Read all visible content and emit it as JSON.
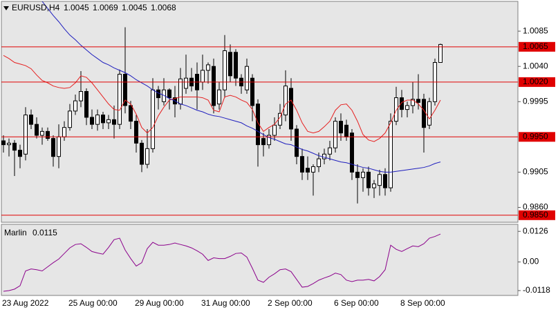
{
  "chart_data": [
    {
      "type": "candlestick",
      "title": "EURUSD,H4",
      "categories": [
        "23 Aug 2022",
        null,
        null,
        null,
        null,
        null,
        null,
        null,
        null,
        null,
        null,
        null,
        "25 Aug 00:00",
        null,
        null,
        null,
        null,
        null,
        null,
        null,
        null,
        null,
        null,
        null,
        "29 Aug 00:00",
        null,
        null,
        null,
        null,
        null,
        null,
        null,
        null,
        null,
        null,
        null,
        "31 Aug 00:00",
        null,
        null,
        null,
        null,
        null,
        null,
        null,
        null,
        null,
        null,
        null,
        "2 Sep 00:00",
        null,
        null,
        null,
        null,
        null,
        null,
        null,
        null,
        null,
        null,
        null,
        "6 Sep 00:00",
        null,
        null,
        null,
        null,
        null,
        null,
        null,
        null,
        null,
        null,
        null,
        "8 Sep 00:00",
        null,
        null,
        null,
        null,
        null,
        null,
        null
      ],
      "open": [
        0.9945,
        0.994,
        0.9942,
        0.9933,
        0.9928,
        0.9978,
        0.9966,
        0.9952,
        0.9957,
        0.9948,
        0.9925,
        0.995,
        0.9962,
        0.9983,
        0.9996,
        1.0008,
        0.9975,
        0.9966,
        0.9978,
        0.9968,
        0.9972,
        0.9966,
        1.003,
        0.999,
        0.997,
        0.9942,
        0.9915,
        0.9935,
        1.001,
        0.9995,
        1.001,
        1.0,
        0.9992,
        1.0012,
        1.0025,
        1.003,
        1.002,
        1.0035,
        1.004,
        0.9992,
        1.001,
        1.0058,
        1.0058,
        1.0025,
        1.001,
        1.0025,
        0.9992,
        0.9948,
        0.994,
        0.9952,
        0.9965,
        0.9978,
        1.0012,
        0.996,
        0.9925,
        0.991,
        0.9905,
        0.9912,
        0.9922,
        0.9928,
        0.9936,
        0.997,
        0.9965,
        0.9955,
        0.9905,
        0.9898,
        0.9905,
        0.9885,
        0.9888,
        0.9902,
        0.9885,
        0.997,
        1.0,
        0.9985,
        0.999,
        0.9998,
        0.9998,
        0.9965,
        0.9995,
        1.0045
      ],
      "high": [
        0.9952,
        0.9948,
        0.9946,
        0.994,
        0.9988,
        0.9985,
        0.9975,
        0.9962,
        0.9962,
        0.9952,
        0.9966,
        0.997,
        0.9992,
        1.0004,
        1.0034,
        1.0012,
        0.9985,
        0.9985,
        0.9982,
        0.9978,
        0.999,
        1.0036,
        1.009,
        0.9996,
        0.9978,
        0.9946,
        0.996,
        1.0025,
        1.0015,
        1.0025,
        1.0012,
        1.0015,
        1.0038,
        1.0055,
        1.0038,
        1.0045,
        1.0055,
        1.0045,
        1.005,
        1.002,
        1.008,
        1.0068,
        1.0062,
        1.003,
        1.005,
        1.003,
        0.9998,
        0.9955,
        0.996,
        0.9975,
        0.9992,
        1.0035,
        1.0025,
        0.9965,
        0.9935,
        0.9925,
        0.9915,
        0.993,
        0.9935,
        0.9945,
        0.9975,
        0.998,
        0.9972,
        0.996,
        0.9915,
        0.991,
        0.9912,
        0.9895,
        0.9908,
        0.991,
        0.998,
        1.0014,
        1.001,
        0.9995,
        1.002,
        1.003,
        1.0005,
        1.0,
        1.005,
        1.0069
      ],
      "low": [
        0.993,
        0.9925,
        0.99,
        0.991,
        0.992,
        0.996,
        0.9948,
        0.994,
        0.9945,
        0.9912,
        0.991,
        0.9945,
        0.9958,
        0.9978,
        0.9988,
        0.9965,
        0.996,
        0.9958,
        0.996,
        0.996,
        0.9948,
        0.996,
        0.998,
        0.996,
        0.993,
        0.9905,
        0.991,
        0.993,
        0.9985,
        0.999,
        0.9985,
        0.9975,
        0.9985,
        1.0005,
        1.0008,
        0.9985,
        1.001,
        1.0018,
        0.998,
        0.9985,
        1.0,
        1.002,
        1.0015,
        1.0005,
        1.0005,
        0.997,
        0.9912,
        0.9925,
        0.9935,
        0.9945,
        0.996,
        0.997,
        0.9945,
        0.9915,
        0.9895,
        0.9895,
        0.9875,
        0.9905,
        0.9915,
        0.992,
        0.993,
        0.9945,
        0.9945,
        0.9895,
        0.9865,
        0.988,
        0.9875,
        0.9872,
        0.9875,
        0.9875,
        0.988,
        0.9965,
        0.9975,
        0.9975,
        0.998,
        0.9985,
        0.993,
        0.996,
        0.999,
        1.0045
      ],
      "close": [
        0.994,
        0.9942,
        0.9933,
        0.9925,
        0.9978,
        0.9966,
        0.9952,
        0.9957,
        0.9948,
        0.9925,
        0.995,
        0.9962,
        0.9983,
        0.9996,
        1.0008,
        0.9975,
        0.9966,
        0.9978,
        0.9968,
        0.9972,
        0.9966,
        1.003,
        0.999,
        0.997,
        0.9942,
        0.9915,
        0.9935,
        1.001,
        1.0,
        1.001,
        1.0,
        0.9992,
        1.0024,
        1.0025,
        1.0015,
        1.001,
        1.0035,
        1.0042,
        0.999,
        1.001,
        1.006,
        1.0028,
        1.0025,
        1.0015,
        1.004,
        0.999,
        0.994,
        0.994,
        0.9952,
        0.9965,
        0.998,
        1.0015,
        0.996,
        0.9925,
        0.9905,
        0.9905,
        0.9912,
        0.9922,
        0.9928,
        0.9936,
        0.997,
        0.9955,
        0.995,
        0.9905,
        0.9898,
        0.9905,
        0.9885,
        0.989,
        0.9902,
        0.9885,
        0.997,
        1.0,
        0.9985,
        0.999,
        0.9998,
        0.9994,
        0.9962,
        0.9995,
        1.0045,
        1.0068
      ],
      "up_color": "#ffffff",
      "down_color": "#000000",
      "background": "#e6e6e6",
      "series": [
        {
          "color": "#e61e1e",
          "values": [
            1.0054,
            1.005,
            1.0045,
            1.0043,
            1.0041,
            1.0037,
            1.0029,
            1.0022,
            1.0019,
            1.0015,
            1.0013,
            1.0012,
            1.0013,
            1.0019,
            1.0028,
            1.0026,
            1.0019,
            1.001,
            1.0001,
            0.9992,
            0.9985,
            0.9984,
            0.9997,
            0.9992,
            0.9979,
            0.9962,
            0.9955,
            0.9962,
            0.9977,
            0.9988,
            0.9997,
            0.9999,
            1.0001,
            1.0001,
            1.0001,
            1.0001,
            1.0,
            0.9997,
            0.9984,
            0.9982,
            1.0001,
            1.0003,
            1.0001,
            0.9997,
            0.9994,
            0.9985,
            0.9968,
            0.9957,
            0.9962,
            0.9966,
            0.9975,
            0.9992,
            0.9997,
            0.9984,
            0.9968,
            0.9957,
            0.9955,
            0.9957,
            0.9963,
            0.997,
            0.9984,
            0.9991,
            0.9992,
            0.9984,
            0.997,
            0.9953,
            0.9946,
            0.9944,
            0.9948,
            0.9955,
            0.9968,
            0.9984,
            0.9994,
            0.9997,
            0.9997,
            0.9992,
            0.9984,
            0.9973,
            0.9984,
            0.9997
          ]
        },
        {
          "color": "#1e1ebe",
          "values": [
            null,
            null,
            null,
            null,
            null,
            null,
            null,
            1.0123,
            1.0114,
            1.0105,
            1.0097,
            1.0088,
            1.008,
            1.0074,
            1.0067,
            1.0061,
            1.0055,
            1.005,
            1.0045,
            1.0042,
            1.0038,
            1.0035,
            1.0032,
            1.0028,
            1.0023,
            1.0019,
            1.0015,
            1.001,
            1.0006,
            1.0003,
            0.9999,
            0.9996,
            0.9992,
            0.999,
            0.9987,
            0.9984,
            0.9982,
            0.9979,
            0.9977,
            0.9976,
            0.9974,
            0.9972,
            0.997,
            0.9968,
            0.9964,
            0.9961,
            0.9957,
            0.9953,
            0.9949,
            0.9947,
            0.9944,
            0.9941,
            0.994,
            0.9937,
            0.9934,
            0.9932,
            0.9929,
            0.9926,
            0.9924,
            0.9922,
            0.992,
            0.9918,
            0.9917,
            0.9915,
            0.9913,
            0.9911,
            0.991,
            0.9908,
            0.9906,
            0.9905,
            0.9905,
            0.9906,
            0.9907,
            0.9908,
            0.9909,
            0.991,
            0.9911,
            0.9913,
            0.9916,
            0.9918
          ]
        }
      ],
      "levels": [
        1.0065,
        {
          "value": 1.002,
          "label": "1.0020"
        },
        {
          "value": 0.995,
          "label": "0.9950"
        },
        {
          "value": 0.985,
          "label": "0.9850"
        }
      ],
      "level_color": "#e00000",
      "ylim": [
        0.9841,
        1.0123
      ],
      "yticks": [
        1.0085,
        {
          "value": 1.004,
          "label": "1.0040"
        },
        0.9995,
        0.9905,
        {
          "value": 0.986,
          "label": "0.9860"
        }
      ]
    },
    {
      "type": "line",
      "series": [
        {
          "name": "Marlin",
          "color": "#8b008b",
          "values": [
            -0.0121,
            -0.0118,
            -0.0112,
            -0.0098,
            -0.0037,
            -0.0029,
            -0.0032,
            -0.0037,
            -0.002,
            -0.0003,
            0.0012,
            0.0035,
            0.0058,
            0.0072,
            0.0075,
            0.006,
            0.0043,
            0.0037,
            0.0032,
            0.006,
            0.0092,
            0.0098,
            0.0049,
            0.0014,
            -0.0017,
            -0.0003,
            0.0055,
            0.0081,
            0.0069,
            0.0069,
            0.0072,
            0.0078,
            0.0072,
            0.0066,
            0.0058,
            0.0046,
            0.0032,
            0.0006,
            0.0017,
            0.0014,
            0.0014,
            0.0023,
            0.0035,
            0.0037,
            0.002,
            -0.0026,
            -0.0075,
            -0.0084,
            -0.0063,
            -0.0049,
            -0.0032,
            -0.0029,
            -0.004,
            -0.0072,
            -0.0104,
            -0.0101,
            -0.0089,
            -0.0075,
            -0.0066,
            -0.0058,
            -0.0046,
            -0.0052,
            -0.0075,
            -0.0081,
            -0.0075,
            -0.0075,
            -0.0072,
            -0.0078,
            -0.006,
            -0.0032,
            0.0069,
            0.0052,
            0.0043,
            0.0055,
            0.0066,
            0.0063,
            0.0075,
            0.0098,
            0.0105,
            0.0115
          ]
        }
      ],
      "ylim": [
        -0.0138,
        0.0155
      ],
      "yticks": [
        0.0126,
        {
          "value": 0,
          "label": "0.00"
        },
        -0.0118
      ]
    }
  ]
}
